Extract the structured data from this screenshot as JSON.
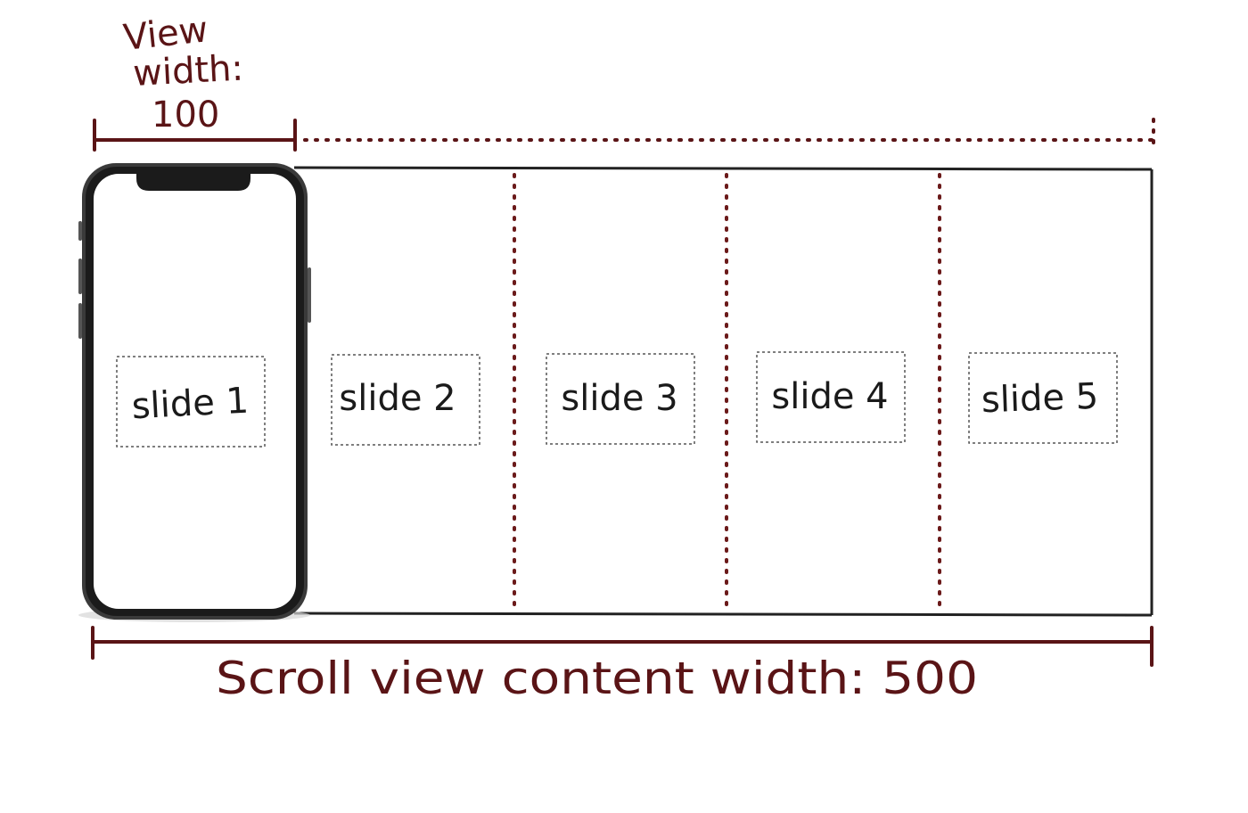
{
  "view_width": {
    "line1": "View",
    "line2": "width:",
    "value": "100"
  },
  "content_width": {
    "label": "Scroll view content width: 500"
  },
  "slides": [
    {
      "label": "slide 1"
    },
    {
      "label": "slide 2"
    },
    {
      "label": "slide 3"
    },
    {
      "label": "slide 4"
    },
    {
      "label": "slide 5"
    }
  ],
  "colors": {
    "annotation": "#5a1416",
    "divider": "#6b1a1a",
    "frame": "#222222",
    "phone_body": "#2b2b2b",
    "phone_screen": "#ffffff",
    "slide_border": "#555555"
  },
  "icons": {
    "phone": "smartphone-icon"
  }
}
